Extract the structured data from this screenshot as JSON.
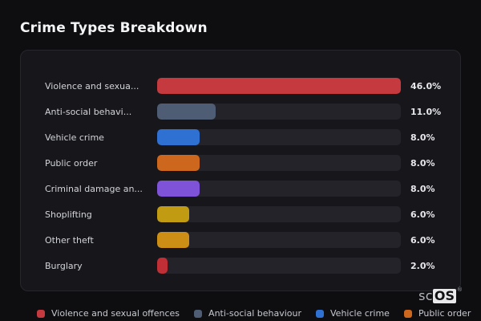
{
  "page": {
    "title": "Crime Types Breakdown",
    "background_color": "#0e0e11",
    "card_background_color": "#17171b",
    "track_color": "#232329"
  },
  "chart": {
    "max_value": 46,
    "rows": [
      {
        "label": "Violence and sexua...",
        "value": 46.0,
        "value_label": "46.0%",
        "color": "#c43a3e"
      },
      {
        "label": "Anti-social behavi...",
        "value": 11.0,
        "value_label": "11.0%",
        "color": "#4e5d73"
      },
      {
        "label": "Vehicle crime",
        "value": 8.0,
        "value_label": "8.0%",
        "color": "#2f70d3"
      },
      {
        "label": "Public order",
        "value": 8.0,
        "value_label": "8.0%",
        "color": "#cd671d"
      },
      {
        "label": "Criminal damage an...",
        "value": 8.0,
        "value_label": "8.0%",
        "color": "#7e53d8"
      },
      {
        "label": "Shoplifting",
        "value": 6.0,
        "value_label": "6.0%",
        "color": "#c19c13"
      },
      {
        "label": "Other theft",
        "value": 6.0,
        "value_label": "6.0%",
        "color": "#cd8e16"
      },
      {
        "label": "Burglary",
        "value": 2.0,
        "value_label": "2.0%",
        "color": "#c02f36"
      }
    ]
  },
  "legend": {
    "items": [
      {
        "label": "Violence and sexual offences",
        "color": "#c43a3e"
      },
      {
        "label": "Anti-social behaviour",
        "color": "#4e5d73"
      },
      {
        "label": "Vehicle crime",
        "color": "#2f70d3"
      },
      {
        "label": "Public order",
        "color": "#cd671d"
      }
    ]
  },
  "logo": {
    "prefix": "sc",
    "suffix": "OS",
    "registered_mark": "®"
  },
  "chart_data": {
    "type": "bar",
    "orientation": "horizontal",
    "title": "Crime Types Breakdown",
    "categories": [
      "Violence and sexua...",
      "Anti-social behavi...",
      "Vehicle crime",
      "Public order",
      "Criminal damage an...",
      "Shoplifting",
      "Other theft",
      "Burglary"
    ],
    "values": [
      46.0,
      11.0,
      8.0,
      8.0,
      8.0,
      6.0,
      6.0,
      2.0
    ],
    "value_labels": [
      "46.0%",
      "11.0%",
      "8.0%",
      "8.0%",
      "8.0%",
      "6.0%",
      "6.0%",
      "2.0%"
    ],
    "bar_colors": [
      "#c43a3e",
      "#4e5d73",
      "#2f70d3",
      "#cd671d",
      "#7e53d8",
      "#c19c13",
      "#cd8e16",
      "#c02f36"
    ],
    "xlim": [
      0,
      46
    ],
    "grid": false,
    "legend_position": "bottom",
    "legend_entries": [
      "Violence and sexual offences",
      "Anti-social behaviour",
      "Vehicle crime",
      "Public order"
    ]
  }
}
